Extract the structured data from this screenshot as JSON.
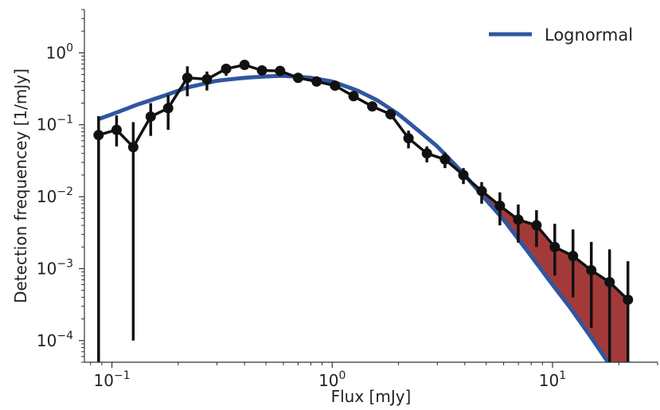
{
  "chart_data": {
    "type": "line",
    "xlabel": "Flux [mJy]",
    "ylabel": "Detection frequencey [1/mJy]",
    "xscale": "log",
    "yscale": "log",
    "xlim": [
      0.075,
      30
    ],
    "ylim": [
      5e-05,
      4
    ],
    "xticks": [
      {
        "value": 0.1,
        "base": "10",
        "exp": "−1"
      },
      {
        "value": 1,
        "base": "10",
        "exp": "0"
      },
      {
        "value": 10,
        "base": "10",
        "exp": "1"
      }
    ],
    "yticks": [
      {
        "value": 1,
        "base": "10",
        "exp": "0"
      },
      {
        "value": 0.1,
        "base": "10",
        "exp": "−1"
      },
      {
        "value": 0.01,
        "base": "10",
        "exp": "−2"
      },
      {
        "value": 0.001,
        "base": "10",
        "exp": "−3"
      },
      {
        "value": 0.0001,
        "base": "10",
        "exp": "−4"
      }
    ],
    "grid": false,
    "legend_position": "top-right",
    "series": [
      {
        "kind": "data-with-errorbars",
        "color": "#111111",
        "x": [
          0.087,
          0.105,
          0.125,
          0.15,
          0.18,
          0.22,
          0.27,
          0.33,
          0.4,
          0.48,
          0.58,
          0.7,
          0.85,
          1.03,
          1.25,
          1.52,
          1.84,
          2.22,
          2.69,
          3.25,
          3.94,
          4.77,
          5.77,
          6.99,
          8.46,
          10.24,
          12.39,
          15.0,
          18.16,
          22.0
        ],
        "y": [
          0.072,
          0.085,
          0.049,
          0.13,
          0.17,
          0.45,
          0.43,
          0.6,
          0.68,
          0.57,
          0.56,
          0.45,
          0.4,
          0.35,
          0.25,
          0.18,
          0.14,
          0.065,
          0.04,
          0.033,
          0.02,
          0.012,
          0.0075,
          0.0048,
          0.004,
          0.002,
          0.0015,
          0.00095,
          0.00065,
          0.00037
        ],
        "yerr_low": [
          0.07199,
          0.035,
          0.0489,
          0.06,
          0.085,
          0.2,
          0.13,
          0.12,
          0.09,
          0.07,
          0.05,
          0.04,
          0.03,
          0.025,
          0.02,
          0.015,
          0.012,
          0.018,
          0.01,
          0.008,
          0.005,
          0.004,
          0.0035,
          0.0025,
          0.002,
          0.0012,
          0.0011,
          0.0008,
          0.00064,
          0.000369
        ],
        "yerr_high": [
          0.06,
          0.05,
          0.06,
          0.07,
          0.09,
          0.2,
          0.12,
          0.1,
          0.08,
          0.06,
          0.05,
          0.04,
          0.03,
          0.025,
          0.02,
          0.015,
          0.012,
          0.018,
          0.01,
          0.008,
          0.005,
          0.004,
          0.004,
          0.003,
          0.0025,
          0.0022,
          0.002,
          0.0014,
          0.0012,
          0.0009
        ]
      },
      {
        "kind": "model-curve",
        "name": "Lognormal",
        "color": "#2f56a0",
        "x": [
          0.087,
          0.1,
          0.13,
          0.17,
          0.22,
          0.3,
          0.4,
          0.5,
          0.6,
          0.8,
          1.0,
          1.3,
          1.6,
          2.0,
          2.5,
          3.0,
          4.0,
          5.0,
          6.0,
          8.0,
          10.0,
          12.0,
          15.0,
          17.5,
          20.0
        ],
        "y": [
          0.12,
          0.14,
          0.19,
          0.25,
          0.33,
          0.41,
          0.45,
          0.47,
          0.48,
          0.45,
          0.4,
          0.3,
          0.22,
          0.14,
          0.08,
          0.05,
          0.02,
          0.009,
          0.0048,
          0.0015,
          0.0006,
          0.00029,
          0.00011,
          5.5e-05,
          3e-05
        ]
      }
    ],
    "shaded_region": {
      "description_color": "#a33a3a",
      "x_range": [
        4.1,
        22.0
      ]
    },
    "legend": [
      {
        "label": "Lognormal",
        "color": "#2f56a0"
      }
    ]
  }
}
